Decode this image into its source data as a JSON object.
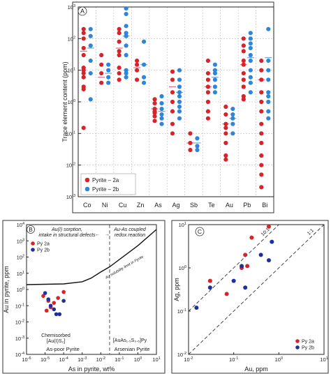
{
  "chart_data": [
    {
      "panel": "A",
      "type": "scatter",
      "x_type": "categorical",
      "categories": [
        "Co",
        "Ni",
        "Cu",
        "Zn",
        "As",
        "Ag",
        "Sb",
        "Te",
        "Au",
        "Pb",
        "Bi"
      ],
      "ylabel": "Trace element content (ppm)",
      "yscale": "log",
      "ylim": [
        0.001,
        1000
      ],
      "y_ticks": [
        {
          "base": "10",
          "exp": "3"
        },
        {
          "base": "10",
          "exp": "2"
        },
        {
          "base": "10",
          "exp": "1"
        },
        {
          "base": "10",
          "exp": "0"
        },
        {
          "base": "10",
          "exp": "-1"
        },
        {
          "base": "10",
          "exp": "-2"
        },
        {
          "base": "10",
          "exp": "-3"
        }
      ],
      "grid": true,
      "legend_position": "bottom-left",
      "colors": {
        "pyrite_2a": "#d8232a",
        "pyrite_2b": "#2f86d8",
        "mean_2a": "#e06a8c",
        "mean_2b": "#6fa6d8"
      },
      "series": [
        {
          "name": "Pyrite – 2a",
          "data": {
            "Co": [
              200,
              150,
              100,
              50,
              30,
              12,
              10,
              8,
              6,
              3,
              2.5,
              0.15
            ],
            "Ni": [
              30,
              15,
              8,
              4
            ],
            "Cu": [
              200,
              150,
              80,
              40,
              30,
              12,
              8,
              5
            ],
            "Zn": [
              20,
              15,
              10,
              5
            ],
            "As": [
              1.2,
              0.9,
              0.6,
              0.5,
              0.45,
              0.35,
              0.25
            ],
            "Ag": [
              9,
              5,
              2,
              1,
              0.5,
              0.2,
              0.1
            ],
            "Sb": [
              0.1,
              0.05,
              0.03
            ],
            "Te": [
              20,
              8,
              5,
              3,
              2,
              1,
              0.5,
              0.3
            ],
            "Au": [
              0.7,
              0.4,
              0.2,
              0.15,
              0.1,
              0.05,
              0.02,
              0.015
            ],
            "Pb": [
              100,
              60,
              40,
              20,
              15,
              8,
              5,
              3,
              1.5,
              1.2
            ],
            "Bi": [
              20,
              10,
              5,
              2,
              1,
              0.5,
              0.2,
              0.1,
              0.05,
              0.02,
              0.01,
              0.005,
              0.002
            ]
          },
          "mean": {
            "Co": 40,
            "Ni": 6,
            "Cu": 50,
            "Zn": 12,
            "As": 0.6,
            "Ag": 3,
            "Sb": 0.05,
            "Te": 3,
            "Au": 0.2,
            "Pb": 15,
            "Bi": 5
          }
        },
        {
          "name": "Pyrite – 2b",
          "data": {
            "Co": [
              200,
              120,
              60,
              20,
              8,
              1.2
            ],
            "Ni": [
              15,
              10,
              6,
              4
            ],
            "Cu": [
              900,
              600,
              250,
              150,
              120,
              60,
              30,
              10,
              8,
              6
            ],
            "Zn": [
              80,
              15,
              6,
              4
            ],
            "As": [
              1.5,
              0.9,
              0.6,
              0.4,
              0.3,
              0.2
            ],
            "Ag": [
              10,
              5,
              3,
              2,
              1.5,
              1,
              0.7,
              0.5,
              0.3
            ],
            "Sb": [
              0.07,
              0.04,
              0.03
            ],
            "Te": [
              15,
              10,
              8,
              5,
              3,
              2
            ],
            "Au": [
              0.6,
              0.4,
              0.3,
              0.2,
              0.1
            ],
            "Pb": [
              150,
              100,
              70,
              50,
              30,
              20,
              10,
              6,
              4,
              2
            ],
            "Bi": [
              200,
              20,
              10,
              5,
              2,
              1.5,
              1,
              0.5,
              0.3
            ]
          },
          "mean": {
            "Co": 50,
            "Ni": 8,
            "Cu": 120,
            "Zn": 15,
            "As": 0.5,
            "Ag": 2,
            "Sb": 0.05,
            "Te": 6,
            "Au": 0.3,
            "Pb": 25,
            "Bi": 25
          }
        }
      ]
    },
    {
      "panel": "B",
      "type": "scatter",
      "xlabel": "As in pyrite, wt%",
      "ylabel": "Au in pyrite, ppm",
      "xscale": "log",
      "yscale": "log",
      "xlim": [
        1e-06,
        10
      ],
      "ylim": [
        0.0001,
        10000
      ],
      "x_ticks": [
        {
          "base": "10",
          "exp": "-6"
        },
        {
          "base": "10",
          "exp": "-5"
        },
        {
          "base": "10",
          "exp": "-4"
        },
        {
          "base": "10",
          "exp": "-3"
        },
        {
          "base": "10",
          "exp": "-2"
        },
        {
          "base": "10",
          "exp": "-1"
        },
        {
          "base": "10",
          "exp": "0"
        },
        {
          "base": "10",
          "exp": "1"
        }
      ],
      "y_ticks": [
        {
          "base": "10",
          "exp": "-4"
        },
        {
          "base": "10",
          "exp": "-3"
        },
        {
          "base": "10",
          "exp": "-2"
        },
        {
          "base": "10",
          "exp": "-1"
        },
        {
          "base": "10",
          "exp": "0"
        },
        {
          "base": "10",
          "exp": "1"
        },
        {
          "base": "10",
          "exp": "2"
        },
        {
          "base": "10",
          "exp": "3"
        },
        {
          "base": "10",
          "exp": "4"
        }
      ],
      "legend_position": "top-left",
      "divider_x": 0.03,
      "solubility_curve": [
        {
          "x": 1e-06,
          "y": 2
        },
        {
          "x": 0.0001,
          "y": 2.2
        },
        {
          "x": 0.001,
          "y": 3
        },
        {
          "x": 0.003,
          "y": 5
        },
        {
          "x": 0.01,
          "y": 12
        },
        {
          "x": 0.03,
          "y": 25
        },
        {
          "x": 0.1,
          "y": 70
        },
        {
          "x": 1,
          "y": 500
        },
        {
          "x": 10,
          "y": 5000
        }
      ],
      "annotations": {
        "top_left": [
          "Au(I) sorption,",
          "intake in structural defects"
        ],
        "top_right": [
          "Au-As coupled",
          "redox reaction"
        ],
        "curve_label": "Au solubility limit in Pyrite",
        "bottom_left": [
          "Chemisorbed",
          "[Au(I)S₂]"
        ],
        "bottom_right": "[AuAs₁.₅S₀.₅]Py",
        "region_left": "As-poor Pyrite",
        "region_right": "Arsenian Pyrite"
      },
      "series": [
        {
          "name": "Py 2a",
          "color": "#d8232a",
          "points": [
            {
              "x": 8e-06,
              "y": 0.4
            },
            {
              "x": 1.5e-05,
              "y": 0.2
            },
            {
              "x": 3e-05,
              "y": 0.15
            },
            {
              "x": 5e-05,
              "y": 0.3
            },
            {
              "x": 0.0001,
              "y": 0.7
            },
            {
              "x": 1.2e-05,
              "y": 0.05
            },
            {
              "x": 2e-05,
              "y": 0.08
            }
          ]
        },
        {
          "name": "Py 2b",
          "color": "#1f2f9e",
          "points": [
            {
              "x": 1e-05,
              "y": 0.6
            },
            {
              "x": 1.5e-05,
              "y": 0.25
            },
            {
              "x": 2e-05,
              "y": 0.1
            },
            {
              "x": 4e-05,
              "y": 0.03
            },
            {
              "x": 6e-05,
              "y": 0.03
            },
            {
              "x": 0.0001,
              "y": 0.2
            },
            {
              "x": 3e-05,
              "y": 0.06
            }
          ]
        }
      ]
    },
    {
      "panel": "C",
      "type": "scatter",
      "xlabel": "Au, ppm",
      "ylabel": "Ag, ppm",
      "xscale": "log",
      "yscale": "log",
      "xlim": [
        0.01,
        10
      ],
      "ylim": [
        0.01,
        10
      ],
      "x_ticks": [
        {
          "base": "10",
          "exp": "-2"
        },
        {
          "base": "10",
          "exp": "-1"
        },
        {
          "base": "10",
          "exp": "0"
        },
        {
          "base": "10",
          "exp": "1"
        }
      ],
      "y_ticks": [
        {
          "base": "10",
          "exp": "-2"
        },
        {
          "base": "10",
          "exp": "-1"
        },
        {
          "base": "10",
          "exp": "0"
        },
        {
          "base": "10",
          "exp": "1"
        }
      ],
      "legend_position": "bottom-right",
      "ratio_lines": [
        {
          "label": "10:1",
          "factor": 10
        },
        {
          "label": "1:1",
          "factor": 1
        }
      ],
      "series": [
        {
          "name": "Py 2a",
          "color": "#d8232a",
          "points": [
            {
              "x": 0.03,
              "y": 0.5
            },
            {
              "x": 0.07,
              "y": 0.25
            },
            {
              "x": 0.15,
              "y": 1
            },
            {
              "x": 0.18,
              "y": 2
            },
            {
              "x": 0.25,
              "y": 5
            },
            {
              "x": 0.6,
              "y": 9
            },
            {
              "x": 0.2,
              "y": 1.1
            }
          ]
        },
        {
          "name": "Py 2b",
          "color": "#1f2f9e",
          "points": [
            {
              "x": 0.015,
              "y": 0.12
            },
            {
              "x": 0.03,
              "y": 0.35
            },
            {
              "x": 0.1,
              "y": 0.5
            },
            {
              "x": 0.15,
              "y": 1.1
            },
            {
              "x": 0.18,
              "y": 0.35
            },
            {
              "x": 0.4,
              "y": 2
            },
            {
              "x": 0.6,
              "y": 1.5
            },
            {
              "x": 0.7,
              "y": 4
            }
          ]
        }
      ]
    }
  ]
}
